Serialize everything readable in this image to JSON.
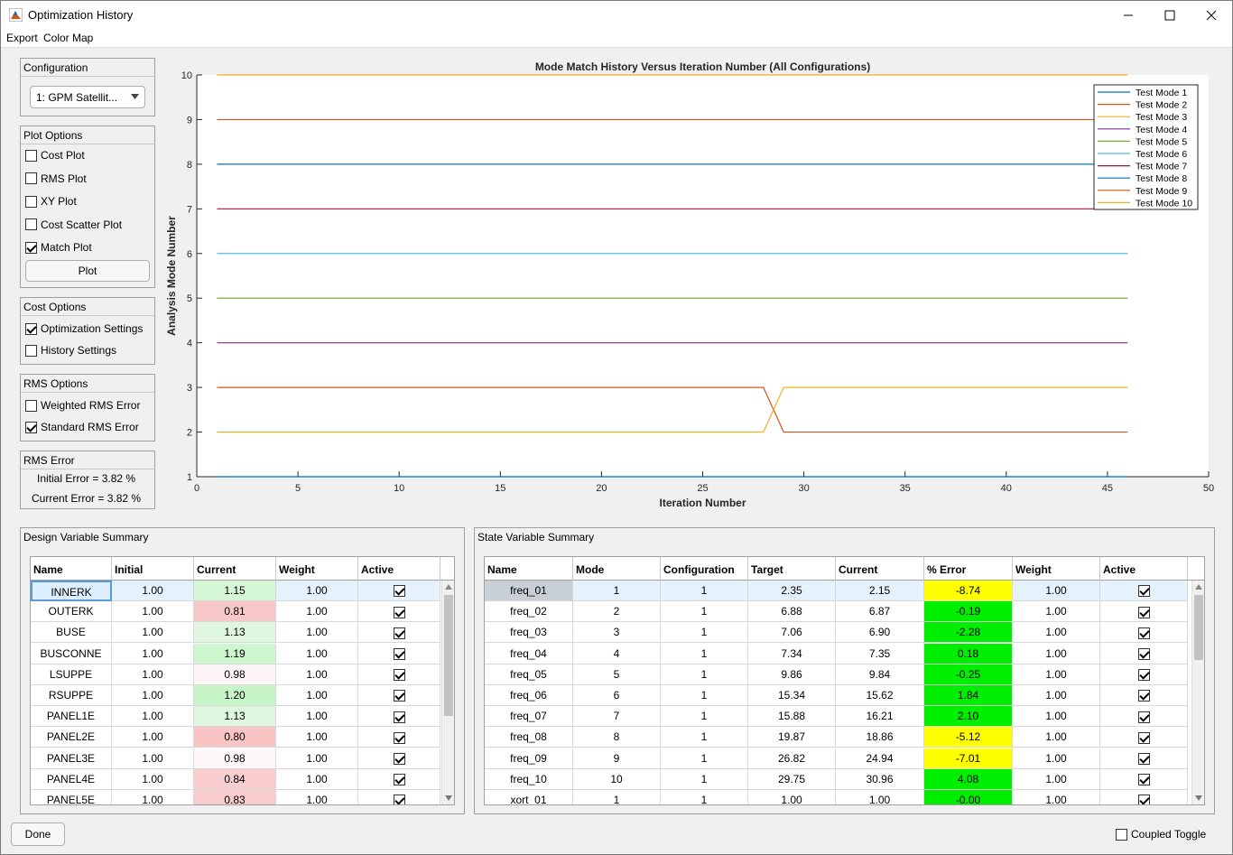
{
  "window": {
    "title": "Optimization History"
  },
  "menu": [
    "Export",
    "Color Map"
  ],
  "configuration": {
    "title": "Configuration",
    "selected": "1: GPM Satellit..."
  },
  "plot_options": {
    "title": "Plot Options",
    "items": [
      {
        "label": "Cost Plot",
        "checked": false
      },
      {
        "label": "RMS Plot",
        "checked": false
      },
      {
        "label": "XY Plot",
        "checked": false
      },
      {
        "label": "Cost Scatter Plot",
        "checked": false
      },
      {
        "label": "Match Plot",
        "checked": true
      }
    ],
    "plot_button": "Plot"
  },
  "cost_options": {
    "title": "Cost Options",
    "items": [
      {
        "label": "Optimization Settings",
        "checked": true
      },
      {
        "label": "History Settings",
        "checked": false
      }
    ]
  },
  "rms_options": {
    "title": "RMS Options",
    "items": [
      {
        "label": "Weighted RMS Error",
        "checked": false
      },
      {
        "label": "Standard RMS Error",
        "checked": true
      }
    ]
  },
  "rms_error": {
    "title": "RMS Error",
    "initial": "Initial Error =  3.82 %",
    "current": "Current Error =  3.82 %"
  },
  "chart_data": {
    "type": "line",
    "title": "Mode Match History Versus Iteration Number (All Configurations)",
    "xlabel": "Iteration Number",
    "ylabel": "Analysis Mode Number",
    "xlim": [
      0,
      50
    ],
    "ylim": [
      1,
      10
    ],
    "xticks": [
      "0",
      "5",
      "10",
      "15",
      "20",
      "25",
      "30",
      "35",
      "40",
      "45",
      "50"
    ],
    "yticks": [
      "1",
      "2",
      "3",
      "4",
      "5",
      "6",
      "7",
      "8",
      "9",
      "10"
    ],
    "grid": false,
    "legend_position": "top-right",
    "series": [
      {
        "name": "Test Mode 1",
        "color": "#0072bd",
        "x": [
          1,
          46
        ],
        "y": [
          1,
          1
        ]
      },
      {
        "name": "Test Mode 2",
        "color": "#d95319",
        "x": [
          1,
          28,
          29,
          46
        ],
        "y": [
          3,
          3,
          2,
          2
        ]
      },
      {
        "name": "Test Mode 3",
        "color": "#edb120",
        "x": [
          1,
          28,
          29,
          46
        ],
        "y": [
          2,
          2,
          3,
          3
        ]
      },
      {
        "name": "Test Mode 4",
        "color": "#7e2f8e",
        "x": [
          1,
          46
        ],
        "y": [
          4,
          4
        ]
      },
      {
        "name": "Test Mode 5",
        "color": "#77ac30",
        "x": [
          1,
          46
        ],
        "y": [
          5,
          5
        ]
      },
      {
        "name": "Test Mode 6",
        "color": "#4dbeee",
        "x": [
          1,
          46
        ],
        "y": [
          6,
          6
        ]
      },
      {
        "name": "Test Mode 7",
        "color": "#a2142f",
        "x": [
          1,
          46
        ],
        "y": [
          7,
          7
        ]
      },
      {
        "name": "Test Mode 8",
        "color": "#0072bd",
        "x": [
          1,
          46
        ],
        "y": [
          8,
          8
        ]
      },
      {
        "name": "Test Mode 9",
        "color": "#d95319",
        "x": [
          1,
          46
        ],
        "y": [
          9,
          9
        ]
      },
      {
        "name": "Test Mode 10",
        "color": "#edb120",
        "x": [
          1,
          46
        ],
        "y": [
          10,
          10
        ]
      }
    ]
  },
  "design_table": {
    "title": "Design Variable Summary",
    "columns": [
      "Name",
      "Initial",
      "Current",
      "Weight",
      "Active"
    ],
    "rows": [
      [
        "INNERK",
        "1.00",
        "1.15",
        "1.00"
      ],
      [
        "OUTERK",
        "1.00",
        "0.81",
        "1.00"
      ],
      [
        "BUSE",
        "1.00",
        "1.13",
        "1.00"
      ],
      [
        "BUSCONNE",
        "1.00",
        "1.19",
        "1.00"
      ],
      [
        "LSUPPE",
        "1.00",
        "0.98",
        "1.00"
      ],
      [
        "RSUPPE",
        "1.00",
        "1.20",
        "1.00"
      ],
      [
        "PANEL1E",
        "1.00",
        "1.13",
        "1.00"
      ],
      [
        "PANEL2E",
        "1.00",
        "0.80",
        "1.00"
      ],
      [
        "PANEL3E",
        "1.00",
        "0.98",
        "1.00"
      ],
      [
        "PANEL4E",
        "1.00",
        "0.84",
        "1.00"
      ],
      [
        "PANEL5E",
        "1.00",
        "0.83",
        "1.00"
      ]
    ],
    "current_colors": [
      "#d6f7d6",
      "#f8c8c8",
      "#dff7df",
      "#cff7cf",
      "#fdf5f5",
      "#c8f5c8",
      "#dff7df",
      "#f8c4c4",
      "#fdf7f7",
      "#f8cece",
      "#f8cccc"
    ]
  },
  "state_table": {
    "title": "State Variable Summary",
    "columns": [
      "Name",
      "Mode",
      "Configuration",
      "Target",
      "Current",
      "% Error",
      "Weight",
      "Active"
    ],
    "rows": [
      [
        "freq_01",
        "1",
        "1",
        "2.35",
        "2.15",
        "-8.74",
        "1.00"
      ],
      [
        "freq_02",
        "2",
        "1",
        "6.88",
        "6.87",
        "-0.19",
        "1.00"
      ],
      [
        "freq_03",
        "3",
        "1",
        "7.06",
        "6.90",
        "-2.28",
        "1.00"
      ],
      [
        "freq_04",
        "4",
        "1",
        "7.34",
        "7.35",
        "0.18",
        "1.00"
      ],
      [
        "freq_05",
        "5",
        "1",
        "9.86",
        "9.84",
        "-0.25",
        "1.00"
      ],
      [
        "freq_06",
        "6",
        "1",
        "15.34",
        "15.62",
        "1.84",
        "1.00"
      ],
      [
        "freq_07",
        "7",
        "1",
        "15.88",
        "16.21",
        "2.10",
        "1.00"
      ],
      [
        "freq_08",
        "8",
        "1",
        "19.87",
        "18.86",
        "-5.12",
        "1.00"
      ],
      [
        "freq_09",
        "9",
        "1",
        "26.82",
        "24.94",
        "-7.01",
        "1.00"
      ],
      [
        "freq_10",
        "10",
        "1",
        "29.75",
        "30.96",
        "4.08",
        "1.00"
      ],
      [
        "xort_01",
        "1",
        "1",
        "1.00",
        "1.00",
        "-0.00",
        "1.00"
      ]
    ],
    "error_colors": [
      "#ffff00",
      "#00ee00",
      "#00ee00",
      "#00ee00",
      "#00ee00",
      "#00ee00",
      "#00ee00",
      "#ffff00",
      "#ffff00",
      "#00ee00",
      "#00ee00"
    ]
  },
  "footer": {
    "done": "Done",
    "coupled_toggle": "Coupled Toggle"
  }
}
